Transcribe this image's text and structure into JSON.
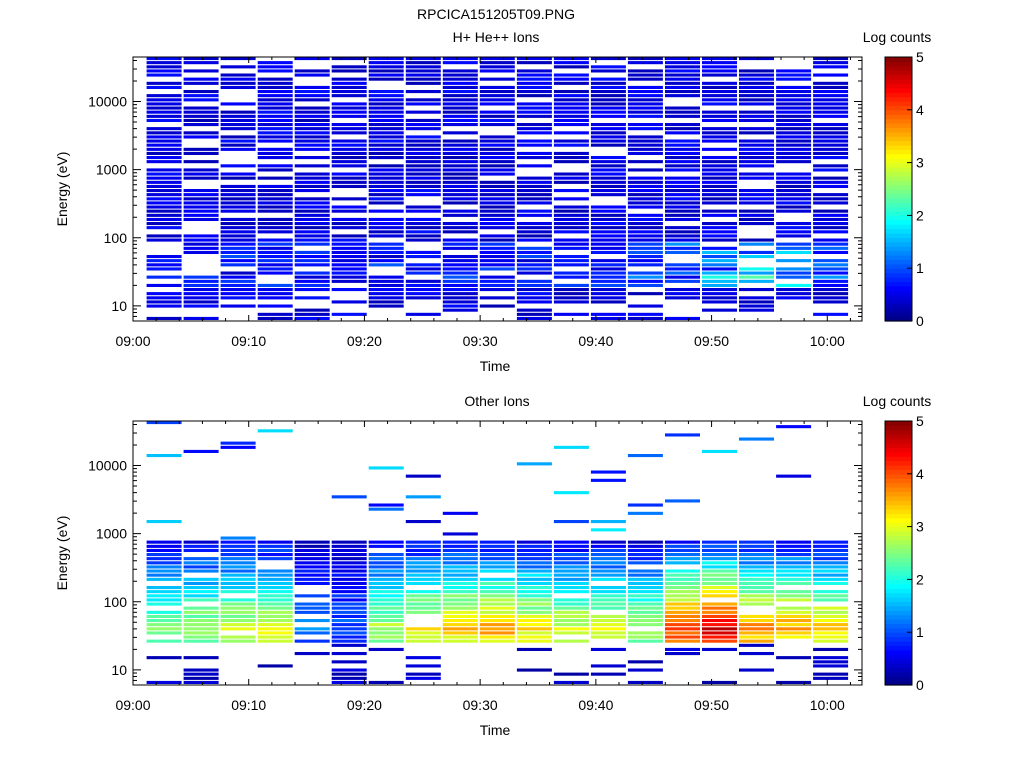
{
  "figure_title": "RPCICA151205T09.PNG",
  "chart_data": [
    {
      "type": "heatmap",
      "title": "H+ He++ Ions",
      "xlabel": "Time",
      "ylabel": "Energy (eV)",
      "x_ticks": [
        "09:00",
        "09:10",
        "09:20",
        "09:30",
        "09:40",
        "09:50",
        "10:00"
      ],
      "y_ticks": [
        "10",
        "100",
        "1000",
        "10000"
      ],
      "y_scale": "log",
      "ylim": [
        6,
        45000
      ],
      "colorbar": {
        "label": "Log counts",
        "ticks": [
          "0",
          "1",
          "2",
          "3",
          "4",
          "5"
        ],
        "range": [
          0,
          5
        ]
      },
      "intensity_levels": [
        0.1,
        0.3,
        0.5,
        0.8,
        1.2,
        1.5,
        2.3
      ],
      "time_bins": 19,
      "background_level": 0.25,
      "low_energy_peak": {
        "energy_ev": 30,
        "max_level": 2.3,
        "peak_time": "09:54"
      }
    },
    {
      "type": "heatmap",
      "title": "Other Ions",
      "xlabel": "Time",
      "ylabel": "Energy (eV)",
      "x_ticks": [
        "09:00",
        "09:10",
        "09:20",
        "09:30",
        "09:40",
        "09:50",
        "10:00"
      ],
      "y_ticks": [
        "10",
        "100",
        "1000",
        "10000"
      ],
      "y_scale": "log",
      "ylim": [
        6,
        45000
      ],
      "colorbar": {
        "label": "Log counts",
        "ticks": [
          "0",
          "1",
          "2",
          "3",
          "4",
          "5"
        ],
        "range": [
          0,
          5
        ]
      },
      "intensity_levels": [
        0.2,
        0.6,
        1.0,
        1.5,
        2.0,
        2.6,
        3.2,
        3.8,
        4.3
      ],
      "time_bins": 19,
      "band_energy_range_ev": [
        25,
        800
      ],
      "band_peak_energy_ev": 40,
      "peak_level_by_bin": [
        2.6,
        2.8,
        3.0,
        3.0,
        1.2,
        1.0,
        2.8,
        3.2,
        3.4,
        3.6,
        3.2,
        3.0,
        3.0,
        2.8,
        4.2,
        4.6,
        3.8,
        3.6,
        3.4
      ]
    }
  ]
}
